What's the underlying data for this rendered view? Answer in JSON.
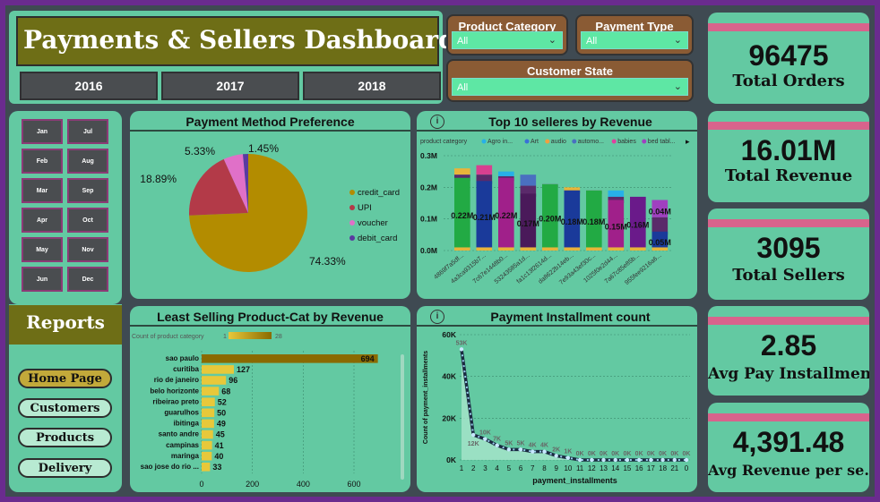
{
  "header": {
    "title": "Payments & Sellers Dashboard",
    "years": [
      "2016",
      "2017",
      "2018"
    ]
  },
  "filters": {
    "product_category": {
      "label": "Product Category",
      "value": "All"
    },
    "payment_type": {
      "label": "Payment Type",
      "value": "All"
    },
    "customer_state": {
      "label": "Customer State",
      "value": "All"
    }
  },
  "kpis": [
    {
      "value": "96475",
      "label": "Total Orders"
    },
    {
      "value": "16.01M",
      "label": "Total Revenue"
    },
    {
      "value": "3095",
      "label": "Total Sellers"
    },
    {
      "value": "2.85",
      "label": "Avg Pay Installment"
    },
    {
      "value": "4,391.48",
      "label": "Avg Revenue per se..."
    }
  ],
  "months": [
    "Jan",
    "Jul",
    "Feb",
    "Aug",
    "Mar",
    "Sep",
    "Apr",
    "Oct",
    "May",
    "Nov",
    "Jun",
    "Dec"
  ],
  "reports": {
    "title": "Reports",
    "nav": [
      "Home Page",
      "Customers",
      "Products",
      "Delivery"
    ]
  },
  "colors": {
    "panel": "#63c9a2",
    "kpi_bar": "#d8638c",
    "title_bg": "#6e6e16",
    "slicer_bg": "#8a5b34"
  },
  "chart_data": [
    {
      "type": "pie",
      "title": "Payment Method Preference",
      "labels": [
        "credit_card",
        "UPI",
        "voucher",
        "debit_card"
      ],
      "values": [
        74.33,
        18.89,
        5.33,
        1.45
      ],
      "value_labels": [
        "74.33%",
        "18.89%",
        "5.33%",
        "1.45%"
      ],
      "colors": [
        "#b38c00",
        "#b33a48",
        "#e070c8",
        "#5a3aa0"
      ],
      "legend": "right"
    },
    {
      "type": "bar",
      "title": "Top 10 selleres by Revenue",
      "legend_title": "product category",
      "legend_items": [
        {
          "name": "Agro in...",
          "color": "#27b0e8"
        },
        {
          "name": "Art",
          "color": "#3a70d8"
        },
        {
          "name": "audio",
          "color": "#f0a040"
        },
        {
          "name": "automo...",
          "color": "#4a70c0"
        },
        {
          "name": "babies",
          "color": "#e040a0"
        },
        {
          "name": "bed tabl...",
          "color": "#a040c0"
        }
      ],
      "categories": [
        "4869f7a5df...",
        "4a3ca9315b7...",
        "7c67e1448b0...",
        "53243585a1d...",
        "fa1c13f2614d...",
        "da8622b14eb...",
        "7e93a43ef30c...",
        "1025f0e2d44...",
        "7a67c85e85b...",
        "955fee9216a6..."
      ],
      "values": [
        0.22,
        0.21,
        0.22,
        0.17,
        0.2,
        0.18,
        0.18,
        0.15,
        0.16,
        0.05
      ],
      "value_labels": [
        "0.22M",
        "0.21M",
        "0.22M",
        "0.17M",
        "0.20M",
        "0.18M",
        "0.18M",
        "0.15M",
        "0.16M",
        "0.05M"
      ],
      "extra_label": "0.04M",
      "stack_totals": [
        0.26,
        0.27,
        0.25,
        0.24,
        0.21,
        0.2,
        0.19,
        0.19,
        0.17,
        0.16
      ],
      "main_colors": [
        "#22aa44",
        "#1a3a9a",
        "#a0208a",
        "#4a1a5a",
        "#22aa44",
        "#1a3a9a",
        "#22aa44",
        "#a0208a",
        "#6a1a8a",
        "#1a3a9a"
      ],
      "yticks": [
        "0.0M",
        "0.1M",
        "0.2M",
        "0.3M"
      ],
      "ylim": [
        0,
        0.3
      ]
    },
    {
      "type": "bar",
      "title": "Least Selling Product-Cat by Revenue",
      "legend_title": "Count of product category",
      "legend_min": "1",
      "legend_max": "28",
      "categories": [
        "sao paulo",
        "curitiba",
        "rio de janeiro",
        "belo horizonte",
        "ribeirao preto",
        "guarulhos",
        "ibitinga",
        "santo andre",
        "campinas",
        "maringa",
        "sao jose do rio ..."
      ],
      "values": [
        694,
        127,
        96,
        68,
        52,
        50,
        49,
        45,
        41,
        40,
        33
      ],
      "xticks": [
        "0",
        "200",
        "400",
        "600"
      ],
      "xlim": [
        0,
        720
      ],
      "colors": [
        "#8a6a00",
        "#e8c83a"
      ]
    },
    {
      "type": "area",
      "title": "Payment Installment count",
      "xlabel": "payment_installments",
      "ylabel": "Count of payment_installments",
      "x": [
        "1",
        "2",
        "3",
        "4",
        "5",
        "6",
        "7",
        "8",
        "9",
        "10",
        "11",
        "12",
        "13",
        "14",
        "15",
        "16",
        "17",
        "18",
        "21",
        "0"
      ],
      "values": [
        53000,
        12000,
        10000,
        7000,
        5000,
        5000,
        4000,
        4000,
        2000,
        1000,
        0,
        0,
        0,
        0,
        0,
        0,
        0,
        0,
        0,
        0
      ],
      "value_labels": [
        "53K",
        "12K",
        "10K",
        "7K",
        "5K",
        "5K",
        "4K",
        "4K",
        "2K",
        "1K",
        "0K",
        "0K",
        "0K",
        "0K",
        "0K",
        "0K",
        "0K",
        "0K",
        "0K",
        "0K"
      ],
      "yticks": [
        "0K",
        "20K",
        "40K",
        "60K"
      ],
      "ylim": [
        0,
        60000
      ]
    }
  ]
}
